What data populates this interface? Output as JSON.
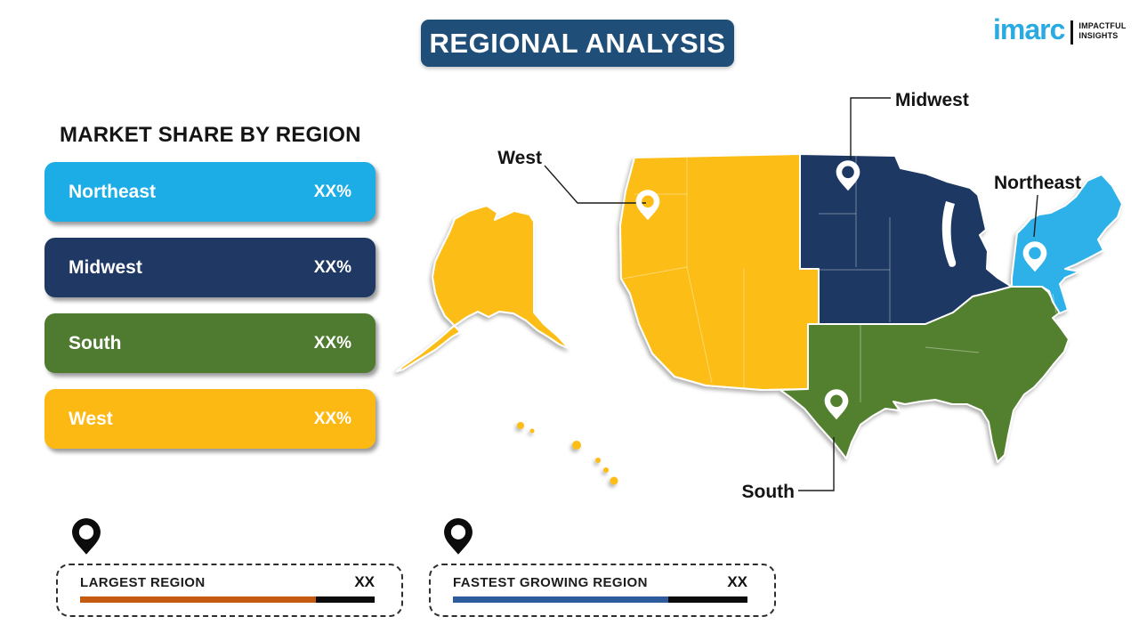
{
  "title": "REGIONAL ANALYSIS",
  "logo": {
    "brand": "imarc",
    "tagline_line1": "IMPACTFUL",
    "tagline_line2": "INSIGHTS",
    "brand_color": "#29ABE2"
  },
  "colors": {
    "banner_bg": "#1F4E79",
    "map_west": "#FCBE17",
    "map_midwest": "#1F3864",
    "map_south": "#53802F",
    "map_northeast": "#2FB1E9",
    "map_pin": "#FFFFFF",
    "legend_pin": "#0C0C0C"
  },
  "panel": {
    "heading": "MARKET SHARE BY REGION",
    "bars": [
      {
        "name": "Northeast",
        "value": "XX%",
        "color": "#1CACE6"
      },
      {
        "name": "Midwest",
        "value": "XX%",
        "color": "#1F3864"
      },
      {
        "name": "South",
        "value": "XX%",
        "color": "#4E7B2F"
      },
      {
        "name": "West",
        "value": "XX%",
        "color": "#FDB913"
      }
    ]
  },
  "map": {
    "region_labels": {
      "west": "West",
      "midwest": "Midwest",
      "northeast": "Northeast",
      "south": "South"
    }
  },
  "legend": {
    "largest": {
      "label": "LARGEST REGION",
      "value": "XX",
      "bar_color": "#C55A11",
      "bar_percent": 80
    },
    "fastest": {
      "label": "FASTEST GROWING REGION",
      "value": "XX",
      "bar_color": "#2E5B9C",
      "bar_percent": 73
    }
  }
}
